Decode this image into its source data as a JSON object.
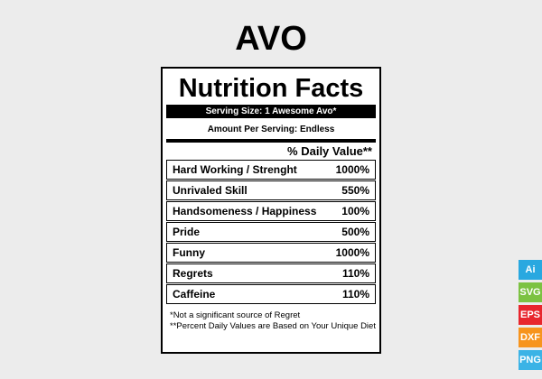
{
  "title": "AVO",
  "label": {
    "heading": "Nutrition Facts",
    "serving_size": "Serving Size: 1 Awesome Avo*",
    "amount_per_serving": "Amount Per Serving: Endless",
    "daily_value_header": "% Daily Value**",
    "rows": [
      {
        "name": "Hard Working / Strenght",
        "value": "1000%"
      },
      {
        "name": "Unrivaled Skill",
        "value": "550%"
      },
      {
        "name": "Handsomeness / Happiness",
        "value": "100%"
      },
      {
        "name": "Pride",
        "value": "500%"
      },
      {
        "name": "Funny",
        "value": "1000%"
      },
      {
        "name": "Regrets",
        "value": "110%"
      },
      {
        "name": "Caffeine",
        "value": "110%"
      }
    ],
    "footnotes": [
      "*Not a significant source of Regret",
      "**Percent Daily Values are Based on Your Unique Diet"
    ]
  },
  "formats": [
    {
      "label": "Ai",
      "color": "#29a8e0"
    },
    {
      "label": "SVG",
      "color": "#7cc242"
    },
    {
      "label": "EPS",
      "color": "#e8262d"
    },
    {
      "label": "DXF",
      "color": "#f7941d"
    },
    {
      "label": "PNG",
      "color": "#3bb3e6"
    }
  ]
}
